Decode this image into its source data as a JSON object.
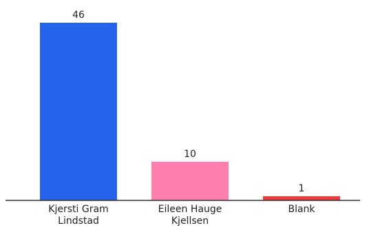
{
  "chart_data": {
    "type": "bar",
    "categories": [
      [
        "Kjersti Gram",
        "Lindstad"
      ],
      [
        "Eileen Hauge",
        "Kjellsen"
      ],
      [
        "Blank"
      ]
    ],
    "values": [
      46,
      10,
      1
    ],
    "colors": [
      "#2563eb",
      "#ff7eb0",
      "#ef3b3b"
    ],
    "data_labels": [
      "46",
      "10",
      "1"
    ],
    "ylim": [
      0,
      46
    ],
    "grid": false,
    "title": "",
    "xlabel": "",
    "ylabel": ""
  }
}
